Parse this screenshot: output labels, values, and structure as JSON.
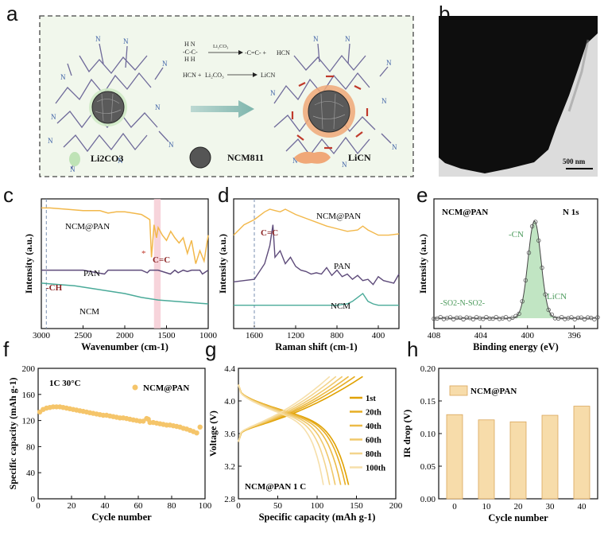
{
  "panels": {
    "a": {
      "letter": "a",
      "reactions": {
        "r1_left": "H  H\n-C-C-\nH  H",
        "r1_reagent": "Li2CO3",
        "r1_products": "HCN",
        "r2_left": "HCN + Li2CO3",
        "r2_products": "LiCN",
        "nitrile": "N≡C"
      },
      "legend": [
        {
          "label": "Li2CO3",
          "color": "#bfe3b6"
        },
        {
          "label": "NCM811",
          "color": "#555555"
        },
        {
          "label": "LiCN",
          "color": "#f0a878"
        }
      ]
    },
    "b": {
      "letter": "b",
      "scale_bar": "500 nm"
    },
    "c": {
      "letter": "c"
    },
    "d": {
      "letter": "d"
    },
    "e": {
      "letter": "e"
    },
    "f": {
      "letter": "f"
    },
    "g": {
      "letter": "g"
    },
    "h": {
      "letter": "h"
    }
  },
  "chart_data": [
    {
      "id": "c",
      "type": "line",
      "title": "",
      "xlabel": "Wavenumber (cm-1)",
      "ylabel": "Intensity (a.u.)",
      "xlim": [
        3000,
        1000
      ],
      "x_reversed": true,
      "xticks": [
        3000,
        2500,
        2000,
        1500,
        1000
      ],
      "series": [
        {
          "name": "NCM@PAN",
          "color": "#f2b84b",
          "x": [
            3000,
            2900,
            2700,
            2500,
            2300,
            2200,
            2100,
            2000,
            1900,
            1800,
            1750,
            1700,
            1680,
            1650,
            1620,
            1600,
            1550,
            1500,
            1450,
            1400,
            1350,
            1300,
            1250,
            1200,
            1150,
            1100,
            1050,
            1000
          ],
          "y": [
            0.93,
            0.93,
            0.92,
            0.91,
            0.91,
            0.89,
            0.9,
            0.9,
            0.89,
            0.88,
            0.86,
            0.84,
            0.55,
            0.8,
            0.7,
            0.78,
            0.72,
            0.68,
            0.75,
            0.7,
            0.66,
            0.7,
            0.58,
            0.68,
            0.5,
            0.6,
            0.52,
            0.72
          ]
        },
        {
          "name": "PAN",
          "color": "#5e4b7a",
          "x": [
            3000,
            2940,
            2900,
            2700,
            2500,
            2243,
            2200,
            2000,
            1800,
            1730,
            1700,
            1600,
            1453,
            1400,
            1360,
            1300,
            1250,
            1200,
            1100,
            1070,
            1000
          ],
          "y": [
            0.45,
            0.45,
            0.45,
            0.45,
            0.45,
            0.42,
            0.45,
            0.45,
            0.45,
            0.43,
            0.45,
            0.45,
            0.42,
            0.45,
            0.43,
            0.45,
            0.44,
            0.45,
            0.45,
            0.42,
            0.45
          ]
        },
        {
          "name": "NCM",
          "color": "#4aaa99",
          "x": [
            3000,
            2800,
            2600,
            2400,
            2200,
            2000,
            1800,
            1600,
            1400,
            1200,
            1000
          ],
          "y": [
            0.35,
            0.34,
            0.33,
            0.31,
            0.29,
            0.27,
            0.24,
            0.22,
            0.21,
            0.2,
            0.19
          ]
        }
      ],
      "annotations": [
        "NCM@PAN",
        "PAN",
        "NCM",
        "-CH",
        "C=C",
        "*"
      ],
      "highlight_band": [
        1650,
        1570
      ]
    },
    {
      "id": "d",
      "type": "line",
      "title": "",
      "xlabel": "Raman shift (cm-1)",
      "ylabel": "Intensity (a.u.)",
      "xlim": [
        1800,
        200
      ],
      "x_reversed": true,
      "xticks": [
        1600,
        1200,
        800,
        400
      ],
      "series": [
        {
          "name": "NCM@PAN",
          "color": "#f2b84b",
          "x": [
            1800,
            1700,
            1600,
            1500,
            1450,
            1400,
            1350,
            1300,
            1200,
            1100,
            1000,
            900,
            800,
            700,
            600,
            550,
            500,
            400,
            300,
            200
          ],
          "y": [
            0.72,
            0.8,
            0.84,
            0.9,
            0.92,
            0.91,
            0.9,
            0.92,
            0.88,
            0.85,
            0.82,
            0.79,
            0.77,
            0.75,
            0.76,
            0.79,
            0.76,
            0.72,
            0.72,
            0.73
          ]
        },
        {
          "name": "PAN",
          "color": "#5e4b7a",
          "x": [
            1800,
            1700,
            1600,
            1500,
            1450,
            1420,
            1400,
            1350,
            1300,
            1250,
            1200,
            1150,
            1100,
            1050,
            1000,
            950,
            900,
            850,
            800,
            750,
            700,
            650,
            600,
            550,
            500,
            450,
            400,
            350,
            300,
            250,
            200
          ],
          "y": [
            0.36,
            0.37,
            0.38,
            0.5,
            0.64,
            0.8,
            0.55,
            0.6,
            0.5,
            0.55,
            0.48,
            0.45,
            0.44,
            0.42,
            0.43,
            0.42,
            0.47,
            0.41,
            0.45,
            0.4,
            0.42,
            0.38,
            0.41,
            0.37,
            0.38,
            0.34,
            0.4,
            0.37,
            0.36,
            0.35,
            0.42
          ]
        },
        {
          "name": "NCM",
          "color": "#4aaa99",
          "x": [
            1800,
            1600,
            1400,
            1200,
            1000,
            800,
            700,
            650,
            600,
            550,
            500,
            450,
            400,
            300,
            200
          ],
          "y": [
            0.18,
            0.18,
            0.18,
            0.18,
            0.18,
            0.18,
            0.19,
            0.21,
            0.24,
            0.27,
            0.21,
            0.19,
            0.18,
            0.18,
            0.18
          ]
        }
      ],
      "annotations": [
        "NCM@PAN",
        "PAN",
        "NCM",
        "C=C"
      ],
      "marker_line": 1600
    },
    {
      "id": "e",
      "type": "line",
      "title": "N 1s",
      "xlabel": "Binding energy (eV)",
      "ylabel": "Intensity (a.u.)",
      "xlim": [
        408,
        394
      ],
      "x_reversed": true,
      "xticks": [
        408,
        404,
        400,
        396
      ],
      "series": [
        {
          "name": "NCM@PAN",
          "color": "#444444",
          "center": 399.4,
          "sigma": 0.55,
          "amplitude": 0.75,
          "baseline": 0.08
        }
      ],
      "annotations": [
        "NCM@PAN",
        "N 1s",
        "-CN",
        "-SO2-N-SO2-",
        "LiCN"
      ]
    },
    {
      "id": "f",
      "type": "scatter",
      "title": "",
      "xlabel": "Cycle number",
      "ylabel": "Specific capacity (mAh g-1)",
      "xlim": [
        0,
        100
      ],
      "ylim": [
        0,
        200
      ],
      "xticks": [
        0,
        20,
        40,
        60,
        80,
        100
      ],
      "yticks": [
        0,
        40,
        80,
        120,
        160,
        200
      ],
      "series": [
        {
          "name": "NCM@PAN",
          "color": "#f5c56a",
          "x": [
            1,
            3,
            5,
            7,
            9,
            11,
            13,
            15,
            17,
            19,
            21,
            23,
            25,
            27,
            29,
            31,
            33,
            35,
            37,
            39,
            41,
            43,
            45,
            47,
            49,
            51,
            53,
            55,
            57,
            59,
            61,
            63,
            65,
            66,
            67,
            69,
            71,
            73,
            75,
            77,
            79,
            81,
            83,
            85,
            87,
            89,
            91,
            93,
            95,
            97
          ],
          "y": [
            133,
            137,
            139,
            140,
            141,
            141,
            141,
            140,
            139,
            138,
            137,
            136,
            135,
            134,
            133,
            132,
            131,
            130,
            129,
            128,
            128,
            127,
            126,
            125,
            124,
            124,
            123,
            122,
            121,
            120,
            119,
            119,
            123,
            122,
            117,
            117,
            116,
            115,
            114,
            113,
            113,
            112,
            111,
            110,
            108,
            107,
            105,
            103,
            101,
            110
          ]
        }
      ],
      "annotations": [
        "1C  30°C",
        "NCM@PAN"
      ]
    },
    {
      "id": "g",
      "type": "line",
      "title": "",
      "xlabel": "Specific capacity (mAh g-1)",
      "ylabel": "Voltage (V)",
      "xlim": [
        0,
        200
      ],
      "ylim": [
        2.8,
        4.4
      ],
      "xticks": [
        0,
        50,
        100,
        150,
        200
      ],
      "yticks": [
        2.8,
        3.2,
        3.6,
        4.0,
        4.4
      ],
      "series": [
        {
          "name": "1st",
          "color": "#e0a100",
          "charge_end": 158,
          "discharge_end": 140
        },
        {
          "name": "20th",
          "color": "#e7ad22",
          "charge_end": 148,
          "discharge_end": 136
        },
        {
          "name": "40th",
          "color": "#ecbb48",
          "charge_end": 140,
          "discharge_end": 130
        },
        {
          "name": "60th",
          "color": "#f0c86a",
          "charge_end": 132,
          "discharge_end": 123
        },
        {
          "name": "80th",
          "color": "#f3d48c",
          "charge_end": 124,
          "discharge_end": 116
        },
        {
          "name": "100th",
          "color": "#f6dfaa",
          "charge_end": 116,
          "discharge_end": 108
        }
      ],
      "annotations": [
        "NCM@PAN   1 C"
      ]
    },
    {
      "id": "h",
      "type": "bar",
      "title": "",
      "xlabel": "Cycle number",
      "ylabel": "IR drop (V)",
      "ylim": [
        0,
        0.2
      ],
      "yticks": [
        0.0,
        0.05,
        0.1,
        0.15,
        0.2
      ],
      "categories": [
        "0",
        "10",
        "20",
        "30",
        "40"
      ],
      "values": [
        0.129,
        0.121,
        0.118,
        0.128,
        0.142
      ],
      "legend": "NCM@PAN",
      "color": "#f7dcaa"
    }
  ]
}
